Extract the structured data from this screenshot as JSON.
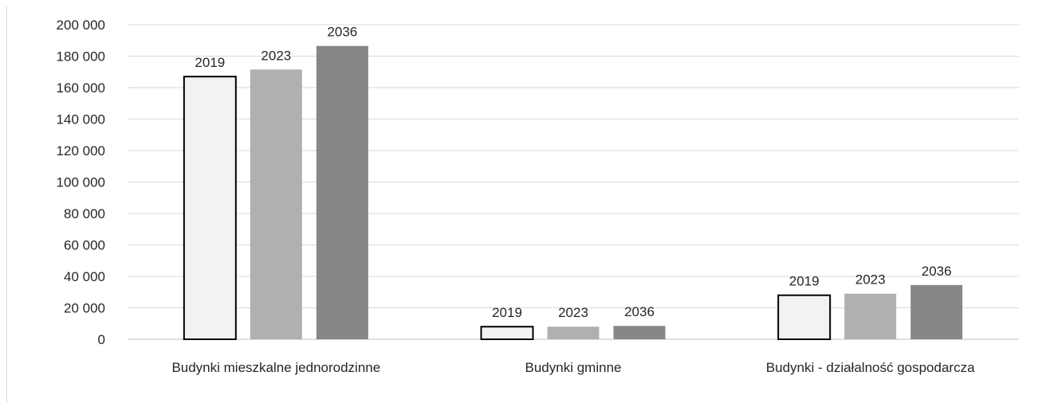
{
  "chart_data": {
    "type": "bar",
    "categories": [
      "Budynki mieszkalne jednorodzinne",
      "Budynki gminne",
      "Budynki - działalność gospodarcza"
    ],
    "series": [
      {
        "name": "2019",
        "values": [
          167000,
          8000,
          28000
        ],
        "color": "#f2f2f2",
        "stroke": "#000000"
      },
      {
        "name": "2023",
        "values": [
          171500,
          8000,
          29000
        ],
        "color": "#b0b0b0",
        "stroke": "none"
      },
      {
        "name": "2036",
        "values": [
          186500,
          8500,
          34500
        ],
        "color": "#878787",
        "stroke": "none"
      }
    ],
    "y_ticks": [
      "0",
      "20 000",
      "40 000",
      "60 000",
      "80 000",
      "100 000",
      "120 000",
      "140 000",
      "160 000",
      "180 000",
      "200 000"
    ],
    "ylim": [
      0,
      200000
    ],
    "grid": true,
    "legend": "none",
    "title": "",
    "xlabel": "",
    "ylabel": ""
  }
}
